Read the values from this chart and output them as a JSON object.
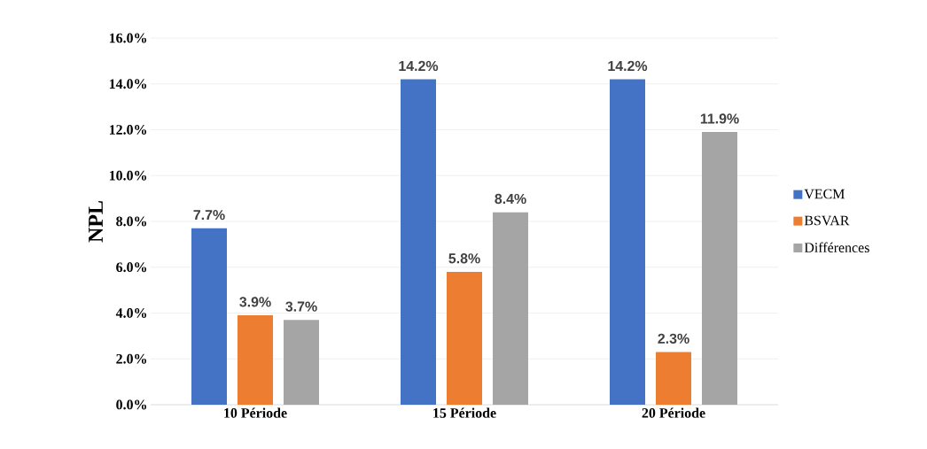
{
  "chart_data": {
    "type": "bar",
    "ylabel": "NPL",
    "categories": [
      "10 Période",
      "15 Période",
      "20 Période"
    ],
    "series": [
      {
        "name": "VECM",
        "color": "#4472c4",
        "values": [
          7.7,
          14.2,
          14.2
        ],
        "value_labels": [
          "7.7%",
          "14.2%",
          "14.2%"
        ]
      },
      {
        "name": "BSVAR",
        "color": "#ed7d31",
        "values": [
          3.9,
          5.8,
          2.3
        ],
        "value_labels": [
          "3.9%",
          "5.8%",
          "2.3%"
        ]
      },
      {
        "name": "Différences",
        "color": "#a5a5a5",
        "values": [
          3.7,
          8.4,
          11.9
        ],
        "value_labels": [
          "3.7%",
          "8.4%",
          "11.9%"
        ]
      }
    ],
    "ylim": [
      0,
      16
    ],
    "yticks": [
      {
        "value": 0,
        "label": "0.0%"
      },
      {
        "value": 2,
        "label": "2.0%"
      },
      {
        "value": 4,
        "label": "4.0%"
      },
      {
        "value": 6,
        "label": "6.0%"
      },
      {
        "value": 8,
        "label": "8.0%"
      },
      {
        "value": 10,
        "label": "10.0%"
      },
      {
        "value": 12,
        "label": "12.0%"
      },
      {
        "value": 14,
        "label": "14.0%"
      },
      {
        "value": 16,
        "label": "16.0%"
      }
    ],
    "grid": "y",
    "legend": "right"
  }
}
